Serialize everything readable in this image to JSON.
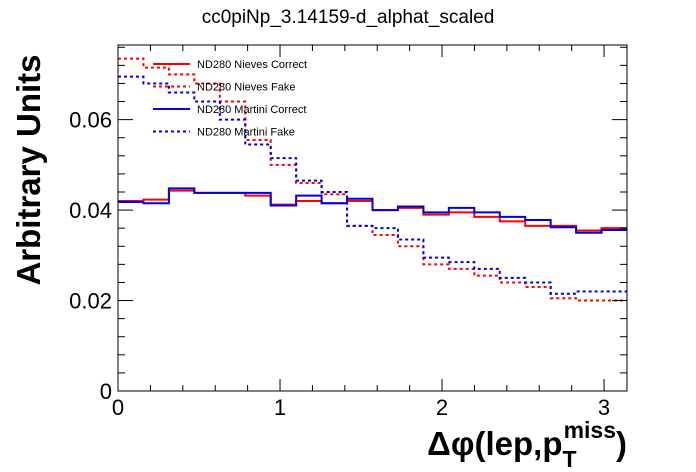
{
  "title": "cc0piNp_3.14159-d_alphat_scaled",
  "chart_data": {
    "type": "line",
    "title": "cc0piNp_3.14159-d_alphat_scaled",
    "xlabel": "Δφ(lep,p_T^miss)",
    "ylabel": "Arbitrary Units",
    "xlim": [
      0,
      3.14159
    ],
    "ylim": [
      0,
      0.0765
    ],
    "xticks": [
      0,
      1,
      2,
      3
    ],
    "yticks": [
      0,
      0.02,
      0.04,
      0.06
    ],
    "ytick_labels": [
      "0",
      "0.02",
      "0.04",
      "0.06"
    ],
    "grid": false,
    "legend_position": "top-left",
    "bin_edges": [
      0,
      0.1571,
      0.3142,
      0.4712,
      0.6283,
      0.7854,
      0.9425,
      1.0996,
      1.2566,
      1.4137,
      1.5708,
      1.7279,
      1.885,
      2.042,
      2.1991,
      2.3562,
      2.5133,
      2.6704,
      2.8274,
      2.9845,
      3.1416
    ],
    "series": [
      {
        "name": "ND280 Nieves Correct",
        "color": "#ff0000",
        "style": "solid",
        "values": [
          0.042,
          0.0423,
          0.0443,
          0.0438,
          0.0438,
          0.0432,
          0.0412,
          0.042,
          0.0415,
          0.042,
          0.04,
          0.0405,
          0.039,
          0.0395,
          0.0385,
          0.0375,
          0.0365,
          0.0365,
          0.0355,
          0.036
        ]
      },
      {
        "name": "ND280 Nieves Fake",
        "color": "#ff0000",
        "style": "dashed",
        "values": [
          0.0735,
          0.0715,
          0.07,
          0.068,
          0.064,
          0.0555,
          0.05,
          0.046,
          0.0435,
          0.0365,
          0.0345,
          0.032,
          0.028,
          0.027,
          0.0255,
          0.024,
          0.023,
          0.0205,
          0.02,
          0.02
        ]
      },
      {
        "name": "ND280 Martini Correct",
        "color": "#0000dd",
        "style": "solid",
        "values": [
          0.0418,
          0.0415,
          0.0448,
          0.0438,
          0.0438,
          0.0438,
          0.041,
          0.0432,
          0.0415,
          0.0425,
          0.04,
          0.0408,
          0.0395,
          0.0405,
          0.0395,
          0.0385,
          0.0378,
          0.0362,
          0.035,
          0.0356
        ]
      },
      {
        "name": "ND280 Martini Fake",
        "color": "#0000dd",
        "style": "dashed",
        "values": [
          0.0695,
          0.068,
          0.066,
          0.064,
          0.06,
          0.0545,
          0.0515,
          0.0465,
          0.044,
          0.0365,
          0.036,
          0.0335,
          0.0295,
          0.0285,
          0.027,
          0.025,
          0.024,
          0.0215,
          0.022,
          0.022
        ]
      }
    ]
  }
}
